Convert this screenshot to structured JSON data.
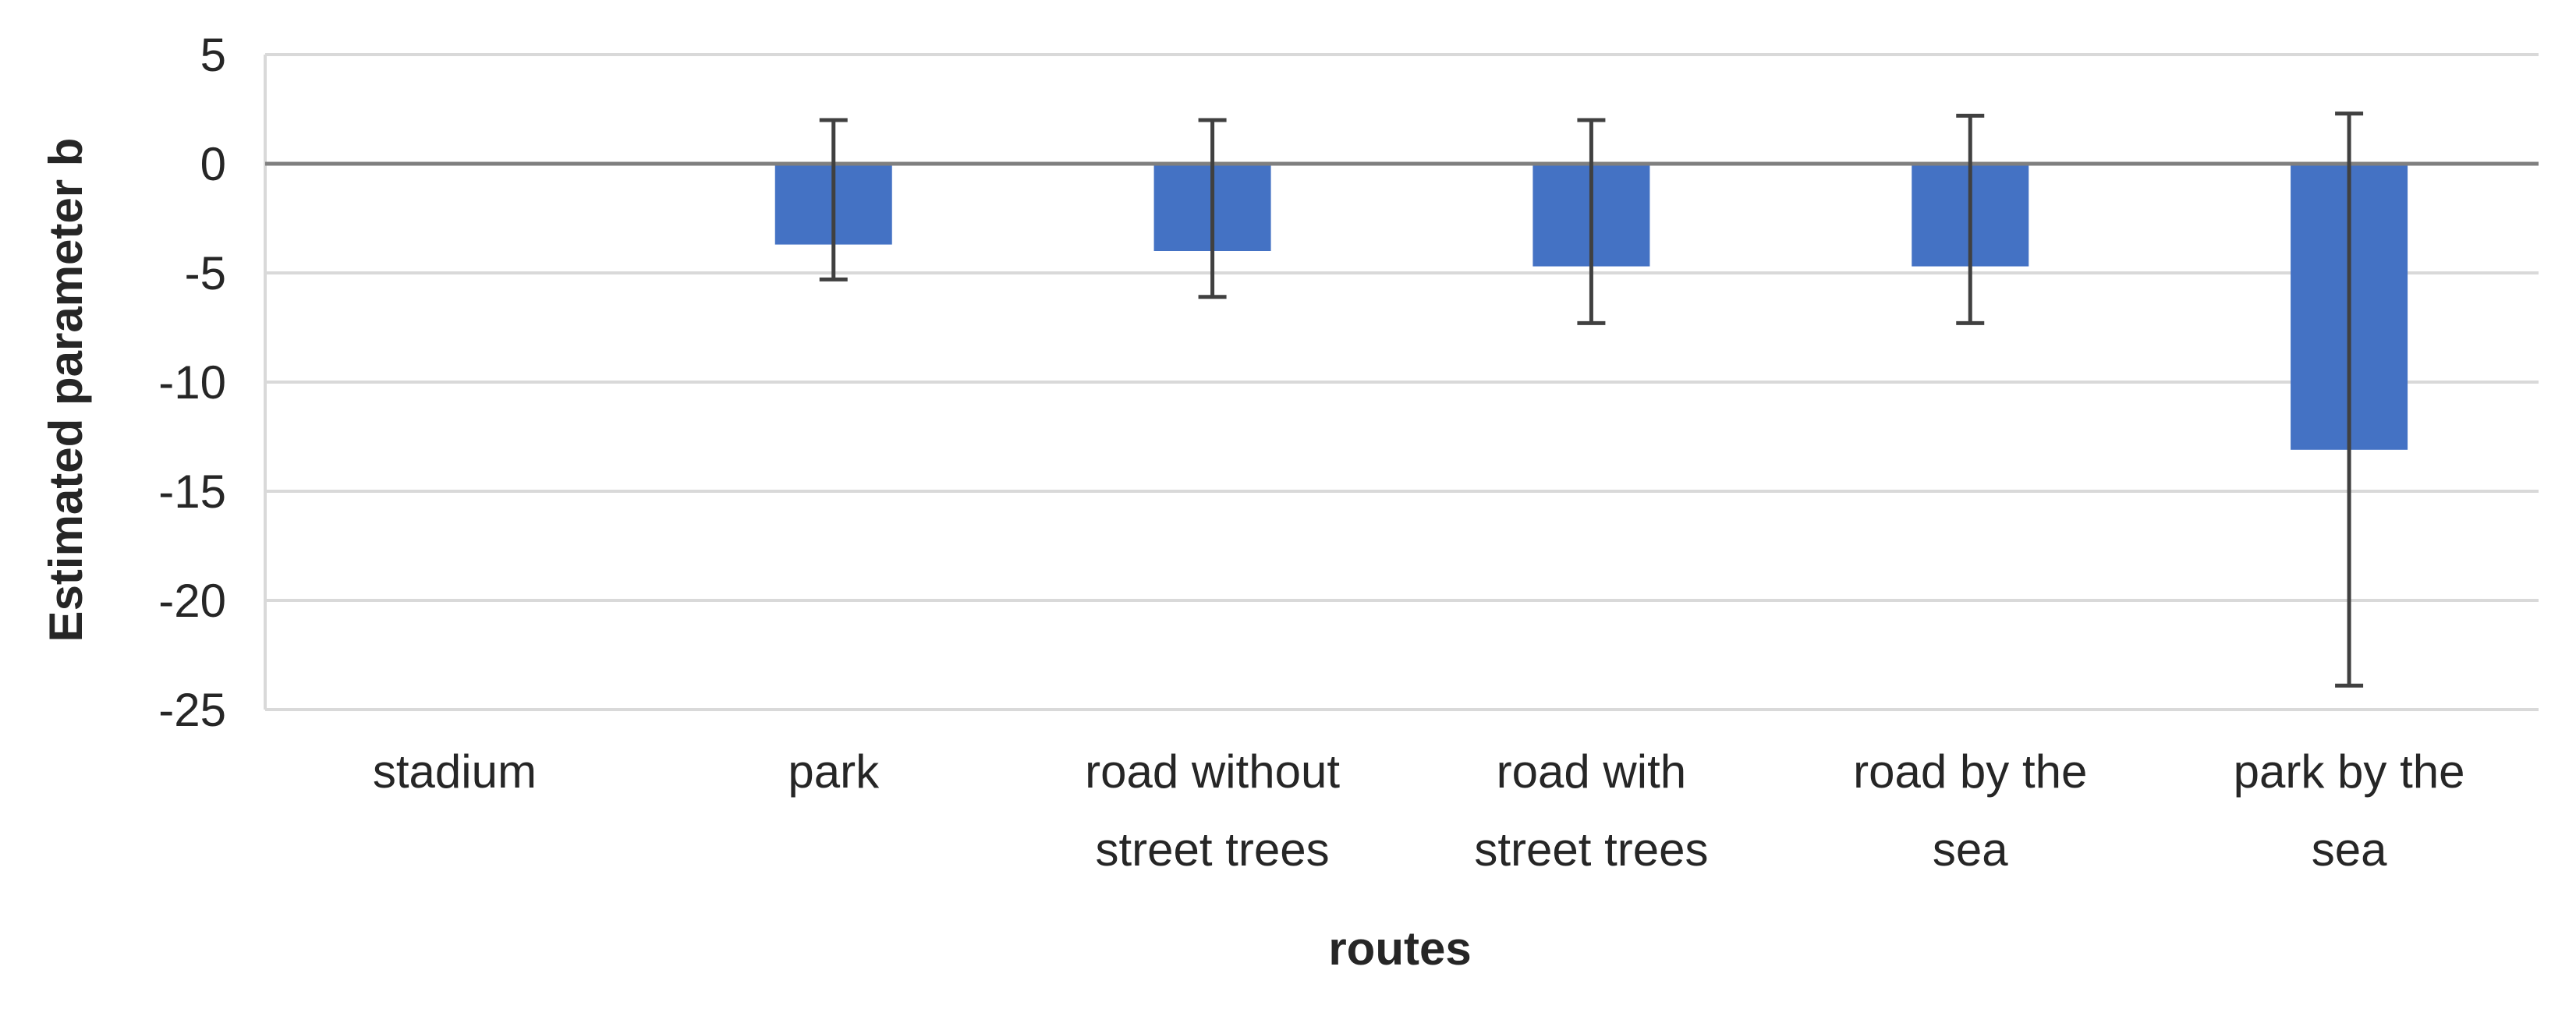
{
  "chart_data": {
    "type": "bar",
    "title": "",
    "xlabel": "routes",
    "ylabel": "Estimated parameter b",
    "ylim": [
      -25,
      5
    ],
    "yticks": [
      5,
      0,
      -5,
      -10,
      -15,
      -20,
      -25
    ],
    "grid": true,
    "legend": "none",
    "categories": [
      [
        "stadium"
      ],
      [
        "park"
      ],
      [
        "road without",
        "street trees"
      ],
      [
        "road with",
        "street trees"
      ],
      [
        "road by the",
        "sea"
      ],
      [
        "park by the",
        "sea"
      ]
    ],
    "values": [
      0,
      -3.7,
      -4.0,
      -4.7,
      -4.7,
      -13.1
    ],
    "error_upper": [
      null,
      2.0,
      2.0,
      2.0,
      2.2,
      2.3
    ],
    "error_lower": [
      null,
      -5.3,
      -6.1,
      -7.3,
      -7.3,
      -23.9
    ],
    "colors": {
      "bar": "#4472c4",
      "error_bar": "#404040",
      "zero_line": "#7f7f7f",
      "grid": "#d9d9d9"
    }
  }
}
